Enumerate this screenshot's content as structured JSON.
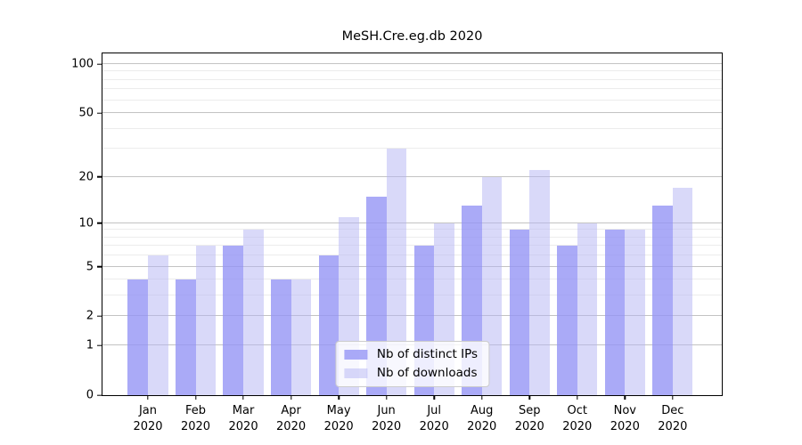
{
  "title": "MeSH.Cre.eg.db 2020",
  "chart_data": {
    "type": "bar",
    "title": "MeSH.Cre.eg.db 2020",
    "categories": [
      "Jan 2020",
      "Feb 2020",
      "Mar 2020",
      "Apr 2020",
      "May 2020",
      "Jun 2020",
      "Jul 2020",
      "Aug 2020",
      "Sep 2020",
      "Oct 2020",
      "Nov 2020",
      "Dec 2020"
    ],
    "x_tick_months": [
      "Jan",
      "Feb",
      "Mar",
      "Apr",
      "May",
      "Jun",
      "Jul",
      "Aug",
      "Sep",
      "Oct",
      "Nov",
      "Dec"
    ],
    "x_tick_year": "2020",
    "series": [
      {
        "name": "Nb of distinct IPs",
        "values": [
          4,
          4,
          7,
          4,
          6,
          15,
          7,
          13,
          9,
          7,
          9,
          13
        ]
      },
      {
        "name": "Nb of downloads",
        "values": [
          6,
          7,
          9,
          4,
          11,
          30,
          10,
          20,
          22,
          10,
          9,
          17
        ]
      }
    ],
    "yscale": "log1p",
    "ylim": [
      0,
      116
    ],
    "y_major_ticks": [
      0,
      1,
      2,
      5,
      10,
      20,
      50,
      100
    ],
    "y_minor_ticks": [
      3,
      4,
      6,
      7,
      8,
      9,
      30,
      40,
      60,
      70,
      80,
      90
    ],
    "grid": "major+minor",
    "legend_position": "lower center"
  },
  "legend": {
    "items": [
      {
        "label": "Nb of distinct IPs",
        "color": "rgba(149,149,245,0.8)"
      },
      {
        "label": "Nb of downloads",
        "color": "rgba(179,179,243,0.5)"
      }
    ]
  },
  "colors": {
    "bar_ips": "rgba(149,149,245,0.8)",
    "bar_downloads": "rgba(179,179,243,0.5)",
    "bar_ips_solid": "#aaaaf6",
    "bar_downloads_solid": "#d9d9f8",
    "grid_major": "#c3c3c3",
    "grid_minor": "#ececec",
    "axis": "#000000",
    "background": "#ffffff"
  }
}
